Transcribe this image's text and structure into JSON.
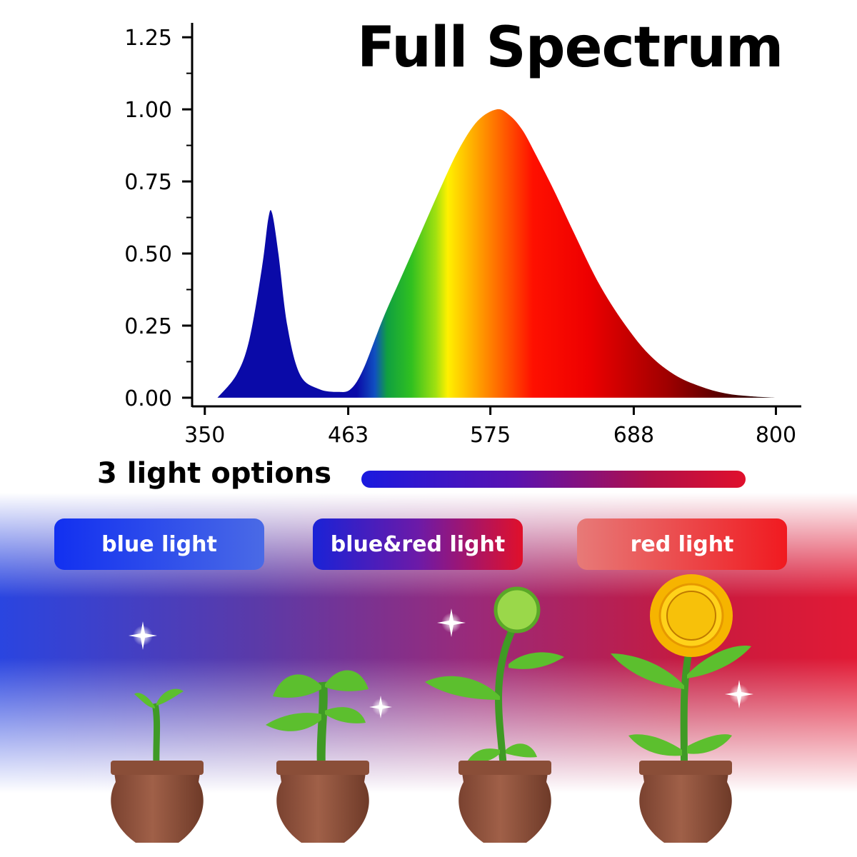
{
  "chart_data": {
    "type": "area",
    "title": "Full Spectrum",
    "xlabel": "",
    "ylabel": "",
    "xlim": [
      340,
      820
    ],
    "ylim": [
      -0.03,
      1.3
    ],
    "x_ticks": [
      350,
      463,
      575,
      688,
      800
    ],
    "x_tick_labels": [
      "350",
      "463",
      "575",
      "688",
      "800"
    ],
    "y_ticks": [
      0.0,
      0.25,
      0.5,
      0.75,
      1.0,
      1.25
    ],
    "y_tick_labels": [
      "0.00",
      "0.25",
      "0.50",
      "0.75",
      "1.00",
      "1.25"
    ],
    "grid": false,
    "series": [
      {
        "x": [
          360,
          375,
          385,
          395,
          400,
          403,
          408,
          415,
          425,
          440,
          455,
          465,
          475,
          490,
          505,
          520,
          535,
          550,
          565,
          580,
          590,
          600,
          610,
          625,
          640,
          660,
          680,
          700,
          720,
          740,
          760,
          780,
          800
        ],
        "values": [
          0.0,
          0.08,
          0.2,
          0.45,
          0.62,
          0.64,
          0.5,
          0.25,
          0.08,
          0.03,
          0.02,
          0.03,
          0.1,
          0.27,
          0.42,
          0.57,
          0.72,
          0.86,
          0.96,
          1.0,
          0.98,
          0.93,
          0.85,
          0.72,
          0.58,
          0.4,
          0.26,
          0.15,
          0.08,
          0.04,
          0.015,
          0.005,
          0.0
        ]
      }
    ]
  },
  "options": {
    "label": "3 light options",
    "pills": [
      "blue light",
      "blue&red light",
      "red light"
    ]
  }
}
